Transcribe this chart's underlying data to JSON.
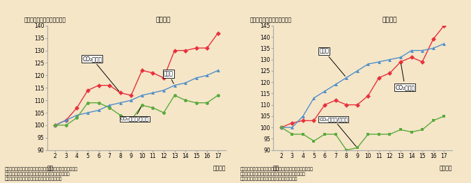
{
  "background_color": "#f5e6c8",
  "years": [
    2,
    3,
    4,
    5,
    6,
    7,
    8,
    9,
    10,
    11,
    12,
    13,
    14,
    15,
    16,
    17
  ],
  "left_title": "家庭部門",
  "right_title": "業務部門",
  "ylabel_left": "指数（平成２年度＝１００）",
  "ylabel_right": "指数（平成２年度＝１００）",
  "left_co2": [
    100,
    102,
    107,
    114,
    116,
    116,
    113,
    112,
    122,
    121,
    119,
    130,
    130,
    131,
    131,
    137
  ],
  "left_households": [
    100,
    102,
    104,
    105,
    106,
    108,
    109,
    110,
    112,
    113,
    114,
    116,
    117,
    119,
    120,
    122
  ],
  "left_co2_per_hh": [
    100,
    100,
    103,
    109,
    109,
    107,
    104,
    102,
    108,
    107,
    105,
    112,
    110,
    109,
    109,
    112
  ],
  "right_co2": [
    100,
    102,
    103,
    103,
    110,
    112,
    110,
    110,
    114,
    122,
    124,
    129,
    131,
    129,
    139,
    145
  ],
  "right_floor": [
    100,
    100,
    105,
    113,
    116,
    119,
    122,
    125,
    128,
    129,
    130,
    131,
    134,
    134,
    135,
    137
  ],
  "right_co2_per_floor": [
    100,
    97,
    97,
    94,
    97,
    97,
    90,
    91,
    97,
    97,
    97,
    99,
    98,
    99,
    103,
    105
  ],
  "color_red": "#e8303c",
  "color_blue": "#4f8fca",
  "color_green": "#5aaa3c",
  "left_ylim": [
    90,
    140
  ],
  "left_yticks": [
    90,
    95,
    100,
    105,
    110,
    115,
    120,
    125,
    130,
    135,
    140
  ],
  "right_ylim": [
    90,
    145
  ],
  "right_yticks": [
    90,
    95,
    100,
    105,
    110,
    115,
    120,
    125,
    130,
    135,
    140,
    145
  ],
  "ann_co2_left_label": "CO₂排出量",
  "ann_hh_label": "世帯数",
  "ann_co2_per_hh_label": "CO₂排出量/世帯数",
  "ann_floor_label": "床面積",
  "ann_co2_right_label": "CO₂排出量",
  "ann_co2_per_floor_label": "CO₂排出量/床面積",
  "source_line1": "資料）国立環境研究所温室効果ガスインベントリオフィス「日",
  "source_line2": "本の温室効果ガス排出量データ」、（財）省エネルギー",
  "source_line3": "センター「エネルギー・経済統計要覧」より作成",
  "xlabel_heisei": "平成",
  "xlabel_nendo": "（年度）"
}
